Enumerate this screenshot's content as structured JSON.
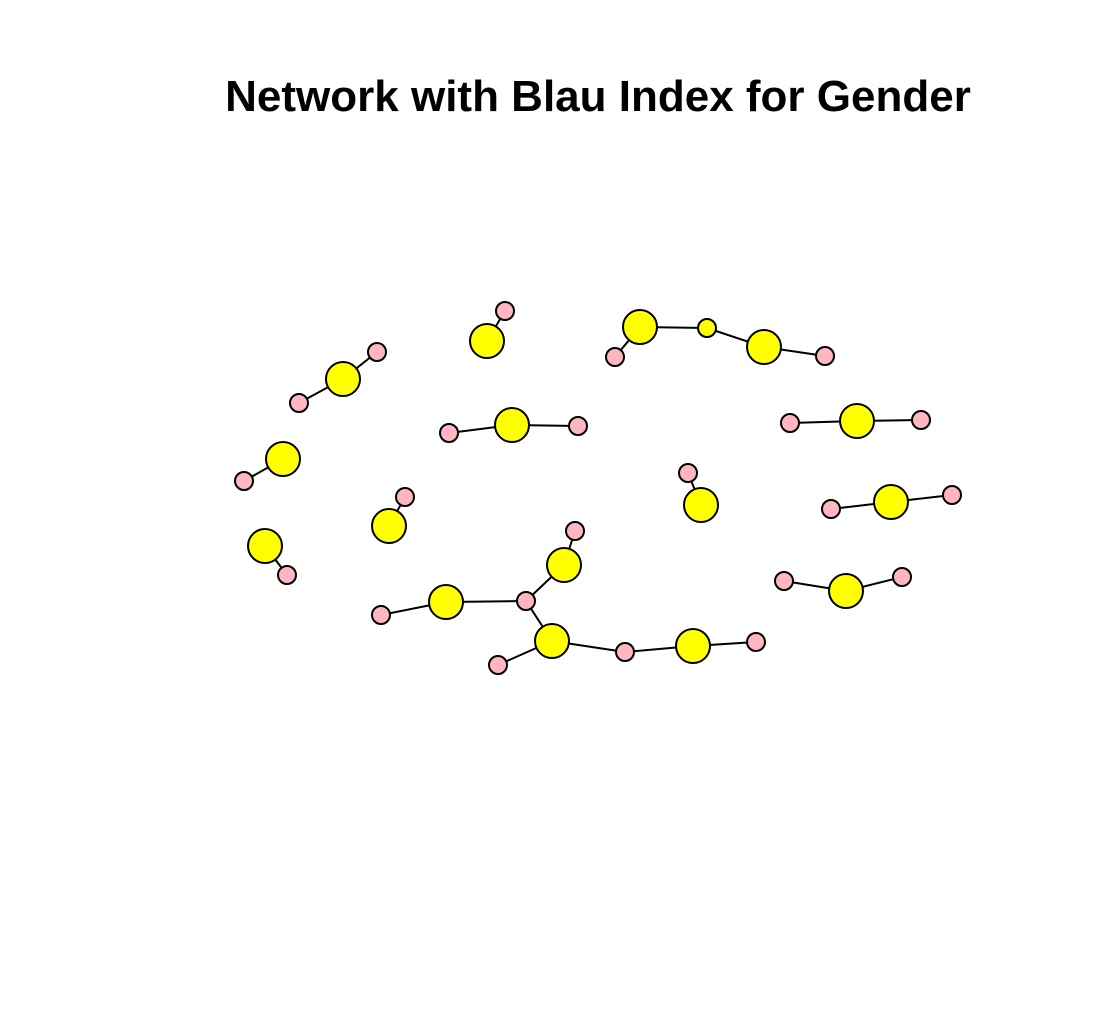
{
  "title": "Network with Blau Index for Gender",
  "colors": {
    "major_node": "#ffff00",
    "minor_node": "#ffb6c1",
    "edge": "#000000",
    "background": "#ffffff"
  },
  "diagram": {
    "nodes": [
      {
        "id": "a1",
        "kind": "minor"
      },
      {
        "id": "a2",
        "kind": "major"
      },
      {
        "id": "a3",
        "kind": "minor"
      },
      {
        "id": "b1",
        "kind": "major"
      },
      {
        "id": "b2",
        "kind": "minor"
      },
      {
        "id": "c1",
        "kind": "minor"
      },
      {
        "id": "c2",
        "kind": "major"
      },
      {
        "id": "c3",
        "kind": "major-small"
      },
      {
        "id": "c4",
        "kind": "major"
      },
      {
        "id": "c5",
        "kind": "minor"
      },
      {
        "id": "d1",
        "kind": "minor"
      },
      {
        "id": "d2",
        "kind": "major"
      },
      {
        "id": "d3",
        "kind": "minor"
      },
      {
        "id": "e1",
        "kind": "minor"
      },
      {
        "id": "e2",
        "kind": "major"
      },
      {
        "id": "e3",
        "kind": "minor"
      },
      {
        "id": "f1",
        "kind": "major"
      },
      {
        "id": "f2",
        "kind": "minor"
      },
      {
        "id": "g1",
        "kind": "major"
      },
      {
        "id": "g2",
        "kind": "minor"
      },
      {
        "id": "h1",
        "kind": "minor"
      },
      {
        "id": "h2",
        "kind": "major"
      },
      {
        "id": "i1",
        "kind": "minor"
      },
      {
        "id": "i2",
        "kind": "major"
      },
      {
        "id": "i3",
        "kind": "minor"
      },
      {
        "id": "j1",
        "kind": "major"
      },
      {
        "id": "j2",
        "kind": "minor"
      },
      {
        "id": "k1",
        "kind": "minor"
      },
      {
        "id": "k2",
        "kind": "major"
      },
      {
        "id": "k3",
        "kind": "minor"
      },
      {
        "id": "l1",
        "kind": "minor"
      },
      {
        "id": "l2",
        "kind": "major"
      },
      {
        "id": "l3",
        "kind": "minor"
      },
      {
        "id": "l4",
        "kind": "major"
      },
      {
        "id": "l5",
        "kind": "minor"
      },
      {
        "id": "l6",
        "kind": "major"
      },
      {
        "id": "l7",
        "kind": "minor"
      },
      {
        "id": "l8",
        "kind": "minor"
      },
      {
        "id": "l9",
        "kind": "major"
      },
      {
        "id": "l10",
        "kind": "minor"
      }
    ],
    "edges": [
      [
        "a1",
        "a2"
      ],
      [
        "a2",
        "a3"
      ],
      [
        "b1",
        "b2"
      ],
      [
        "c1",
        "c2"
      ],
      [
        "c2",
        "c3"
      ],
      [
        "c3",
        "c4"
      ],
      [
        "c4",
        "c5"
      ],
      [
        "d1",
        "d2"
      ],
      [
        "d2",
        "d3"
      ],
      [
        "e1",
        "e2"
      ],
      [
        "e2",
        "e3"
      ],
      [
        "f1",
        "f2"
      ],
      [
        "g1",
        "g2"
      ],
      [
        "h1",
        "h2"
      ],
      [
        "i1",
        "i2"
      ],
      [
        "i2",
        "i3"
      ],
      [
        "j1",
        "j2"
      ],
      [
        "k1",
        "k2"
      ],
      [
        "k2",
        "k3"
      ],
      [
        "l1",
        "l2"
      ],
      [
        "l2",
        "l3"
      ],
      [
        "l3",
        "l4"
      ],
      [
        "l4",
        "l5"
      ],
      [
        "l3",
        "l6"
      ],
      [
        "l6",
        "l7"
      ],
      [
        "l6",
        "l8"
      ],
      [
        "l8",
        "l9"
      ],
      [
        "l9",
        "l10"
      ]
    ]
  }
}
